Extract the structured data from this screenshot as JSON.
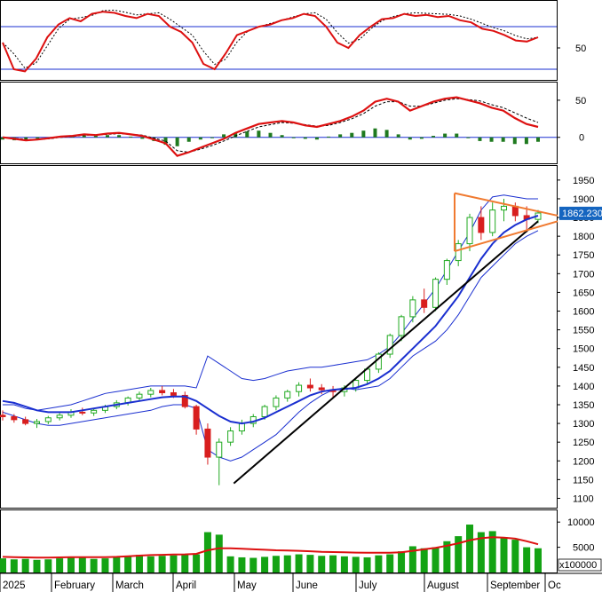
{
  "colors": {
    "up": "#22aa22",
    "down": "#d81e1e",
    "ma_red": "#dd1111",
    "signal": "#000000",
    "ma_blue": "#1a2fd0",
    "band": "#1a2fd0",
    "trendline": "#000000",
    "triangle": "#f07a30",
    "price_tag": "#1565c0",
    "volume": "#14a314",
    "grid": "#000000"
  },
  "chart_data": [
    {
      "type": "line",
      "panel": "oscillator",
      "description": "Oscillator with upper and lower reference lines",
      "y_ticks": [
        "50"
      ],
      "reference_levels": [
        70,
        30
      ],
      "ylim": [
        20,
        95
      ],
      "series": [
        {
          "values": [
            55,
            30,
            28,
            40,
            60,
            72,
            78,
            75,
            82,
            84,
            83,
            80,
            78,
            82,
            80,
            70,
            65,
            55,
            35,
            30,
            45,
            62,
            66,
            70,
            72,
            76,
            78,
            82,
            80,
            70,
            55,
            50,
            62,
            70,
            77,
            78,
            82,
            80,
            81,
            79,
            80,
            76,
            74,
            68,
            66,
            62,
            57,
            56,
            60
          ]
        }
      ]
    },
    {
      "type": "line",
      "panel": "macd",
      "y_ticks": [
        "50",
        "0"
      ],
      "ylim": [
        -35,
        75
      ],
      "series": [
        {
          "values": [
            0,
            -2,
            -4,
            -3,
            -1,
            1,
            2,
            4,
            3,
            5,
            6,
            4,
            2,
            -3,
            -8,
            -25,
            -20,
            -14,
            -8,
            -2,
            6,
            12,
            18,
            20,
            22,
            20,
            16,
            14,
            18,
            22,
            28,
            36,
            48,
            52,
            48,
            36,
            42,
            48,
            52,
            54,
            50,
            46,
            40,
            36,
            26,
            18,
            14
          ]
        },
        {
          "values": [
            0,
            -1,
            -3,
            -3,
            -2,
            0,
            1,
            3,
            3,
            4,
            5,
            4,
            3,
            -1,
            -5,
            -18,
            -20,
            -16,
            -11,
            -5,
            2,
            8,
            14,
            17,
            20,
            19,
            17,
            15,
            16,
            20,
            25,
            32,
            42,
            48,
            48,
            42,
            42,
            46,
            50,
            52,
            51,
            49,
            44,
            40,
            33,
            26,
            20
          ]
        }
      ],
      "histogram": [
        -3,
        -4,
        -3,
        -2,
        0,
        1,
        2,
        3,
        2,
        3,
        3,
        1,
        -2,
        -5,
        -10,
        -12,
        -6,
        -3,
        0,
        4,
        6,
        8,
        9,
        6,
        3,
        0,
        -2,
        -3,
        1,
        4,
        6,
        9,
        12,
        10,
        4,
        -3,
        -2,
        2,
        5,
        5,
        0,
        -5,
        -6,
        -6,
        -9,
        -9,
        -6
      ]
    },
    {
      "type": "candlestick",
      "panel": "price",
      "x_labels": [
        "2025",
        "February",
        "March",
        "April",
        "May",
        "June",
        "July",
        "August",
        "September",
        "Oc"
      ],
      "y_ticks": [
        "1950",
        "1900",
        "1850",
        "1800",
        "1750",
        "1700",
        "1650",
        "1600",
        "1550",
        "1500",
        "1450",
        "1400",
        "1350",
        "1300",
        "1250",
        "1200",
        "1150",
        "1100"
      ],
      "ylim": [
        1075,
        1990
      ],
      "last_price": "1862.230",
      "ohlc": [
        [
          1322,
          1335,
          1308,
          1318
        ],
        [
          1318,
          1325,
          1302,
          1310
        ],
        [
          1310,
          1318,
          1295,
          1300
        ],
        [
          1300,
          1312,
          1288,
          1305
        ],
        [
          1305,
          1320,
          1298,
          1315
        ],
        [
          1315,
          1328,
          1308,
          1322
        ],
        [
          1322,
          1338,
          1315,
          1330
        ],
        [
          1330,
          1342,
          1322,
          1328
        ],
        [
          1328,
          1340,
          1320,
          1335
        ],
        [
          1335,
          1350,
          1328,
          1345
        ],
        [
          1345,
          1362,
          1338,
          1355
        ],
        [
          1355,
          1372,
          1348,
          1368
        ],
        [
          1368,
          1385,
          1360,
          1378
        ],
        [
          1378,
          1395,
          1370,
          1388
        ],
        [
          1388,
          1400,
          1375,
          1382
        ],
        [
          1382,
          1392,
          1368,
          1375
        ],
        [
          1375,
          1385,
          1340,
          1345
        ],
        [
          1345,
          1350,
          1270,
          1285
        ],
        [
          1285,
          1300,
          1190,
          1210
        ],
        [
          1210,
          1260,
          1135,
          1250
        ],
        [
          1250,
          1290,
          1240,
          1280
        ],
        [
          1280,
          1310,
          1270,
          1300
        ],
        [
          1300,
          1325,
          1290,
          1318
        ],
        [
          1318,
          1350,
          1310,
          1345
        ],
        [
          1345,
          1375,
          1335,
          1368
        ],
        [
          1368,
          1390,
          1358,
          1385
        ],
        [
          1385,
          1410,
          1372,
          1402
        ],
        [
          1402,
          1420,
          1385,
          1395
        ],
        [
          1395,
          1405,
          1378,
          1390
        ],
        [
          1390,
          1400,
          1370,
          1385
        ],
        [
          1385,
          1402,
          1372,
          1395
        ],
        [
          1395,
          1420,
          1385,
          1415
        ],
        [
          1415,
          1450,
          1405,
          1445
        ],
        [
          1445,
          1490,
          1435,
          1485
        ],
        [
          1485,
          1540,
          1475,
          1535
        ],
        [
          1535,
          1590,
          1520,
          1585
        ],
        [
          1585,
          1640,
          1570,
          1630
        ],
        [
          1630,
          1660,
          1595,
          1610
        ],
        [
          1610,
          1690,
          1600,
          1685
        ],
        [
          1685,
          1740,
          1670,
          1735
        ],
        [
          1735,
          1790,
          1720,
          1780
        ],
        [
          1780,
          1860,
          1760,
          1850
        ],
        [
          1850,
          1880,
          1790,
          1810
        ],
        [
          1810,
          1890,
          1800,
          1870
        ],
        [
          1870,
          1900,
          1840,
          1880
        ],
        [
          1880,
          1890,
          1840,
          1855
        ],
        [
          1855,
          1880,
          1810,
          1845
        ],
        [
          1845,
          1870,
          1835,
          1862
        ]
      ],
      "moving_average": [
        1360,
        1355,
        1345,
        1335,
        1330,
        1330,
        1330,
        1335,
        1340,
        1345,
        1350,
        1355,
        1360,
        1365,
        1370,
        1372,
        1372,
        1360,
        1340,
        1320,
        1305,
        1300,
        1305,
        1315,
        1330,
        1345,
        1360,
        1375,
        1385,
        1390,
        1392,
        1395,
        1405,
        1420,
        1440,
        1470,
        1500,
        1530,
        1560,
        1600,
        1640,
        1690,
        1740,
        1780,
        1810,
        1830,
        1845,
        1855
      ],
      "upper_band": [
        1350,
        1350,
        1340,
        1335,
        1340,
        1345,
        1350,
        1360,
        1370,
        1380,
        1385,
        1390,
        1395,
        1400,
        1400,
        1400,
        1400,
        1395,
        1480,
        1460,
        1440,
        1420,
        1415,
        1420,
        1430,
        1440,
        1445,
        1450,
        1450,
        1455,
        1460,
        1465,
        1470,
        1485,
        1505,
        1540,
        1580,
        1620,
        1660,
        1710,
        1760,
        1810,
        1870,
        1905,
        1910,
        1905,
        1900,
        1900
      ],
      "lower_band": [
        1330,
        1320,
        1310,
        1300,
        1295,
        1295,
        1300,
        1305,
        1310,
        1315,
        1320,
        1325,
        1330,
        1335,
        1345,
        1350,
        1350,
        1340,
        1230,
        1210,
        1200,
        1210,
        1230,
        1250,
        1270,
        1300,
        1330,
        1355,
        1375,
        1390,
        1395,
        1390,
        1395,
        1400,
        1420,
        1450,
        1480,
        1500,
        1520,
        1550,
        1590,
        1640,
        1690,
        1720,
        1750,
        1780,
        1800,
        1815
      ],
      "trendline": [
        [
          0.1,
          1140
        ],
        [
          1.0,
          1840
        ]
      ],
      "triangle": {
        "top": [
          [
            0.0,
            1915
          ],
          [
            1.0,
            1855
          ]
        ],
        "bottom": [
          [
            0.0,
            1760
          ],
          [
            1.0,
            1840
          ]
        ]
      }
    },
    {
      "type": "bar",
      "panel": "volume",
      "ylabel": "x100000",
      "y_ticks": [
        "10000",
        "5000"
      ],
      "ylim": [
        0,
        12500
      ],
      "values": [
        2800,
        2600,
        2700,
        2500,
        2600,
        2800,
        3000,
        2900,
        2700,
        2800,
        3100,
        3300,
        3500,
        3200,
        3300,
        3400,
        3500,
        3600,
        8000,
        7500,
        3200,
        3000,
        2900,
        3100,
        3300,
        3400,
        3600,
        3500,
        3300,
        3400,
        3200,
        3100,
        3000,
        3400,
        3600,
        4200,
        5200,
        4800,
        5000,
        6200,
        7200,
        9500,
        8000,
        8200,
        7000,
        6500,
        5000,
        4800
      ],
      "moving_average": [
        3100,
        3050,
        3000,
        2950,
        2950,
        3000,
        3050,
        3050,
        3050,
        3050,
        3100,
        3200,
        3350,
        3450,
        3500,
        3550,
        3600,
        3700,
        4400,
        4800,
        4800,
        4700,
        4600,
        4500,
        4400,
        4350,
        4300,
        4200,
        4100,
        4050,
        4000,
        3950,
        3900,
        3900,
        3900,
        4000,
        4300,
        4600,
        4900,
        5300,
        5800,
        6400,
        6800,
        7000,
        6900,
        6700,
        6200,
        5600
      ]
    }
  ]
}
